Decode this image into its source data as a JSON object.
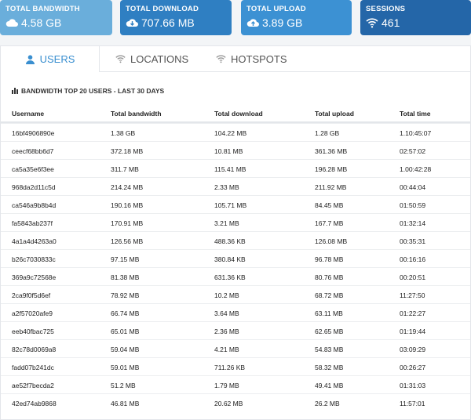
{
  "cards": [
    {
      "label": "TOTAL BANDWIDTH",
      "value": "4.58 GB"
    },
    {
      "label": "TOTAL DOWNLOAD",
      "value": "707.66 MB"
    },
    {
      "label": "TOTAL UPLOAD",
      "value": "3.89 GB"
    },
    {
      "label": "SESSIONS",
      "value": "461"
    }
  ],
  "tabs": [
    "USERS",
    "LOCATIONS",
    "HOTSPOTS"
  ],
  "table": {
    "title": "BANDWIDTH TOP 20 USERS - LAST 30 DAYS",
    "columns": [
      "Username",
      "Total bandwidth",
      "Total download",
      "Total upload",
      "Total time"
    ],
    "rows": [
      [
        "16bf4906890e",
        "1.38 GB",
        "104.22 MB",
        "1.28 GB",
        "1.10:45:07"
      ],
      [
        "ceecf68bb6d7",
        "372.18 MB",
        "10.81 MB",
        "361.36 MB",
        "02:57:02"
      ],
      [
        "ca5a35e6f3ee",
        "311.7 MB",
        "115.41 MB",
        "196.28 MB",
        "1.00:42:28"
      ],
      [
        "968da2d11c5d",
        "214.24 MB",
        "2.33 MB",
        "211.92 MB",
        "00:44:04"
      ],
      [
        "ca546a9b8b4d",
        "190.16 MB",
        "105.71 MB",
        "84.45 MB",
        "01:50:59"
      ],
      [
        "fa5843ab237f",
        "170.91 MB",
        "3.21 MB",
        "167.7 MB",
        "01:32:14"
      ],
      [
        "4a1a4d4263a0",
        "126.56 MB",
        "488.36 KB",
        "126.08 MB",
        "00:35:31"
      ],
      [
        "b26c7030833c",
        "97.15 MB",
        "380.84 KB",
        "96.78 MB",
        "00:16:16"
      ],
      [
        "369a9c72568e",
        "81.38 MB",
        "631.36 KB",
        "80.76 MB",
        "00:20:51"
      ],
      [
        "2ca9f0f5d6ef",
        "78.92 MB",
        "10.2 MB",
        "68.72 MB",
        "11:27:50"
      ],
      [
        "a2f57020afe9",
        "66.74 MB",
        "3.64 MB",
        "63.11 MB",
        "01:22:27"
      ],
      [
        "eeb40fbac725",
        "65.01 MB",
        "2.36 MB",
        "62.65 MB",
        "01:19:44"
      ],
      [
        "82c78d0069a8",
        "59.04 MB",
        "4.21 MB",
        "54.83 MB",
        "03:09:29"
      ],
      [
        "fadd07b241dc",
        "59.01 MB",
        "711.26 KB",
        "58.32 MB",
        "00:26:27"
      ],
      [
        "ae52f7becda2",
        "51.2 MB",
        "1.79 MB",
        "49.41 MB",
        "01:31:03"
      ],
      [
        "42ed74ab9868",
        "46.81 MB",
        "20.62 MB",
        "26.2 MB",
        "11:57:01"
      ]
    ]
  }
}
